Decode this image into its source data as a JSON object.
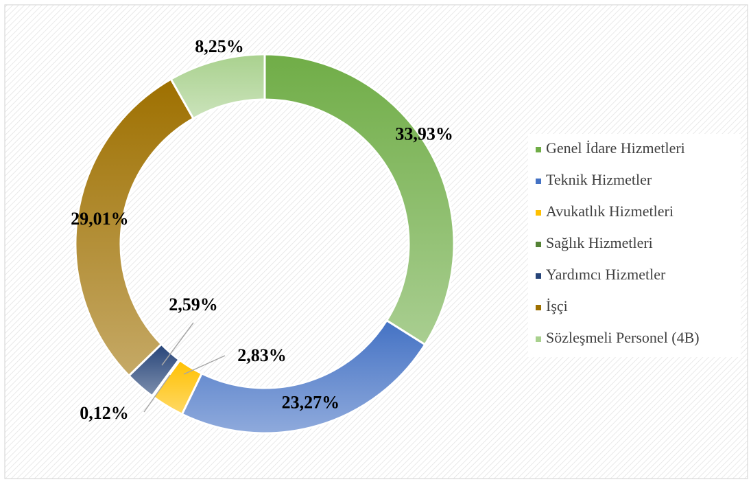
{
  "chart_data": {
    "type": "donut",
    "categories": [
      "Genel İdare Hizmetleri",
      "Teknik Hizmetler",
      "Avukatlık Hizmetleri",
      "Sağlık Hizmetleri",
      "Yardımcı Hizmetler",
      "İşçi",
      "Sözleşmeli Personel  (4B)"
    ],
    "values": [
      33.93,
      23.27,
      2.83,
      0.12,
      2.59,
      29.01,
      8.25
    ],
    "value_labels": [
      "33,93%",
      "23,27%",
      "2,83%",
      "0,12%",
      "2,59%",
      "29,01%",
      "8,25%"
    ],
    "colors": [
      "#70ad47",
      "#4472c4",
      "#ffc000",
      "#548235",
      "#264478",
      "#9e7000",
      "#a9d18e"
    ],
    "legend": "right"
  }
}
